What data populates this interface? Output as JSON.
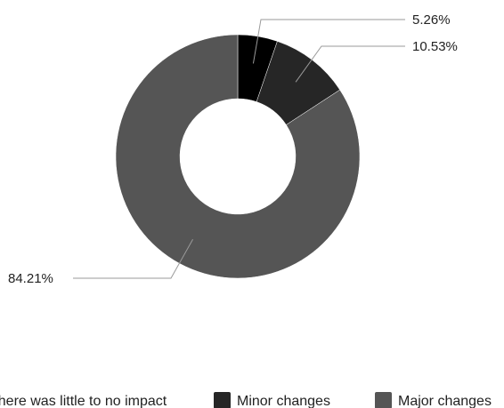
{
  "chart_data": {
    "type": "pie",
    "donut": true,
    "categories": [
      "There was little to no impact",
      "Minor changes",
      "Major changes"
    ],
    "values": [
      5.26,
      10.53,
      84.21
    ],
    "value_labels": [
      "5.26%",
      "10.53%",
      "84.21%"
    ],
    "colors": [
      "#000000",
      "#262626",
      "#555555"
    ],
    "legend_labels": [
      "There was little to no impact",
      "Minor changes",
      "Major changes"
    ],
    "legend_position": "bottom"
  }
}
